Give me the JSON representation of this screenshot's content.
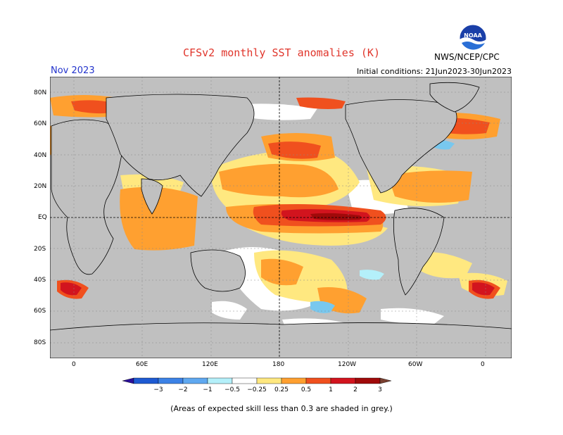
{
  "header": {
    "title": "CFSv2 monthly SST anomalies (K)",
    "month": "Nov 2023",
    "initial_conditions": "Initial conditions: 21Jun2023-30Jun2023",
    "agency": "NWS/NCEP/CPC",
    "logo_text": "NOAA"
  },
  "map": {
    "lat_labels": [
      "80N",
      "60N",
      "40N",
      "20N",
      "EQ",
      "20S",
      "40S",
      "60S",
      "80S"
    ],
    "lon_labels": [
      "0",
      "60E",
      "120E",
      "180",
      "120W",
      "60W",
      "0"
    ],
    "colors": {
      "land": "#c0c0c0",
      "skill_mask": "#c0c0c0",
      "ocean_neutral": "#ffffff",
      "warm_025": "#ffe880",
      "warm_05": "#ffa030",
      "warm_1": "#f0501e",
      "warm_2": "#d2141e",
      "warm_3": "#a00a0a",
      "cool_025": "#b4f0fa",
      "cool_05": "#78c8ef"
    }
  },
  "colorbar": {
    "tick_labels": [
      "−3",
      "−2",
      "−1",
      "−0.5",
      "−0.25",
      "0.25",
      "0.5",
      "1",
      "2",
      "3"
    ],
    "colors": [
      "#2a0f9a",
      "#1e5ad2",
      "#3c82e6",
      "#5fa8f0",
      "#b4f0fa",
      "#ffffff",
      "#ffe880",
      "#ffa030",
      "#f0501e",
      "#d2141e",
      "#a00a0a",
      "#7a4030"
    ]
  },
  "footnote": "(Areas of expected skill less than 0.3 are shaded in grey.)"
}
